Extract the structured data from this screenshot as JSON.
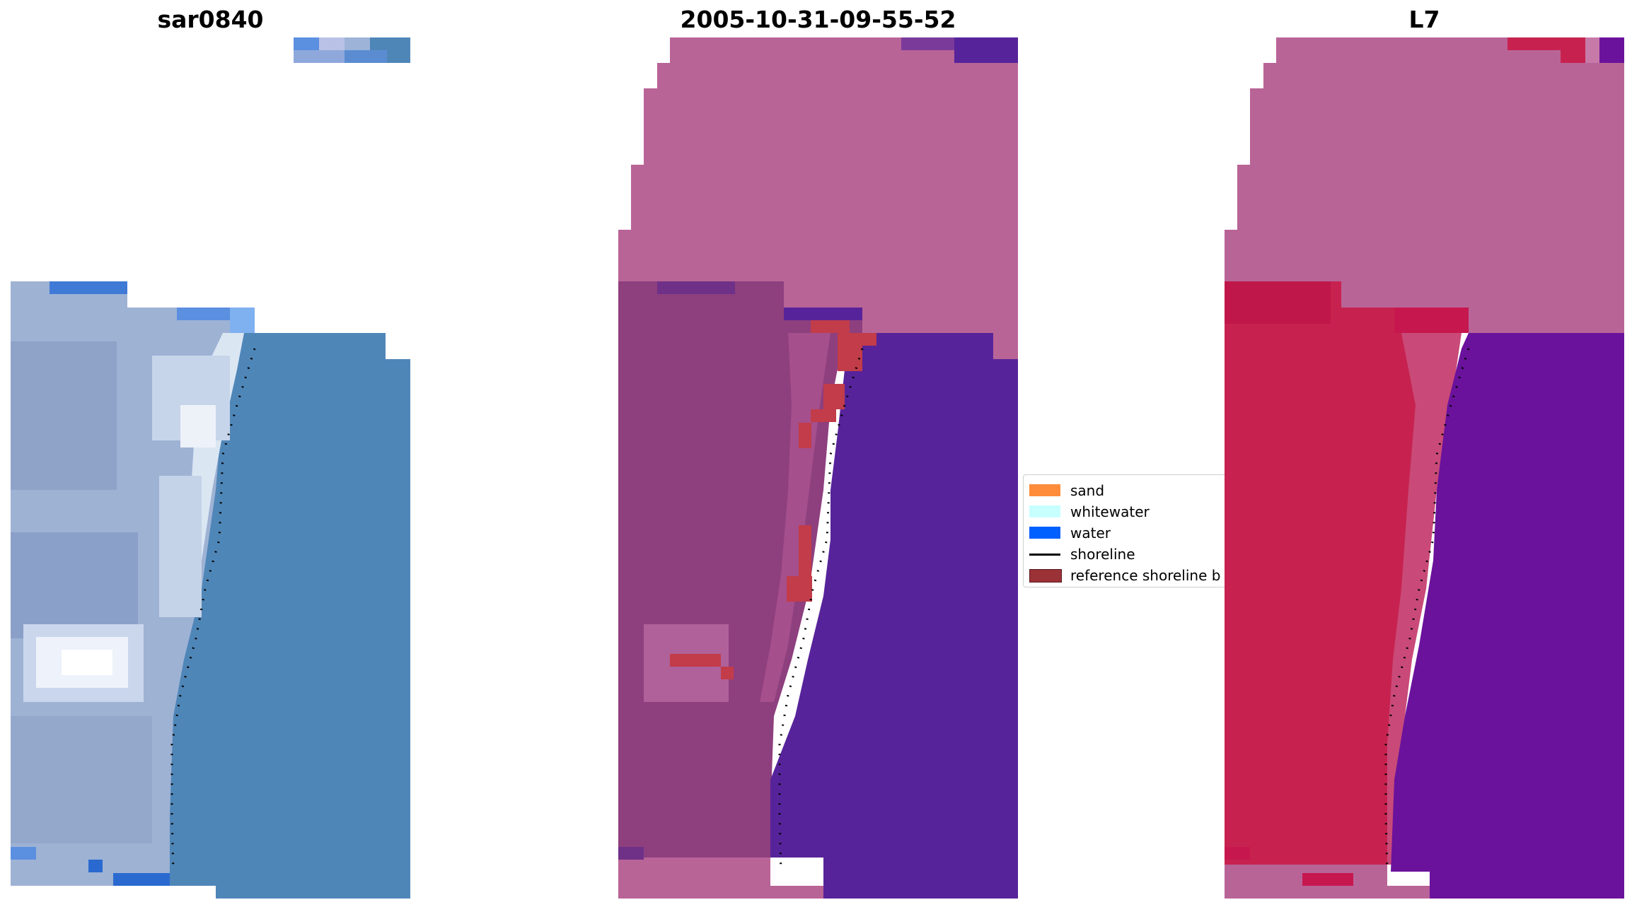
{
  "panels": [
    {
      "title": "sar0840"
    },
    {
      "title": "2005-10-31-09-55-52"
    },
    {
      "title": "L7"
    }
  ],
  "legend": {
    "items": [
      {
        "label": "sand",
        "kind": "patch",
        "color": "#ff8c3a"
      },
      {
        "label": "whitewater",
        "kind": "patch",
        "color": "#c8ffff"
      },
      {
        "label": "water",
        "kind": "patch",
        "color": "#0060ff"
      },
      {
        "label": "shoreline",
        "kind": "line",
        "color": "#000000"
      },
      {
        "label": "reference shoreline b",
        "kind": "patch",
        "color": "#9b3238"
      }
    ]
  },
  "colors": {
    "rgb_water": "#4f86b8",
    "rgb_beach": "#9eb2d4",
    "rgb_bright": "#f2f6fb",
    "rgb_blue_edge": "#2a6ad0",
    "class_sand": "#b96497",
    "class_water": "#57239a",
    "class_land": "#8e3f7e",
    "ref_buffer": "#c23c4a",
    "l7_top": "#b96497",
    "l7_land": "#c7224f",
    "l7_water": "#6b129c"
  }
}
